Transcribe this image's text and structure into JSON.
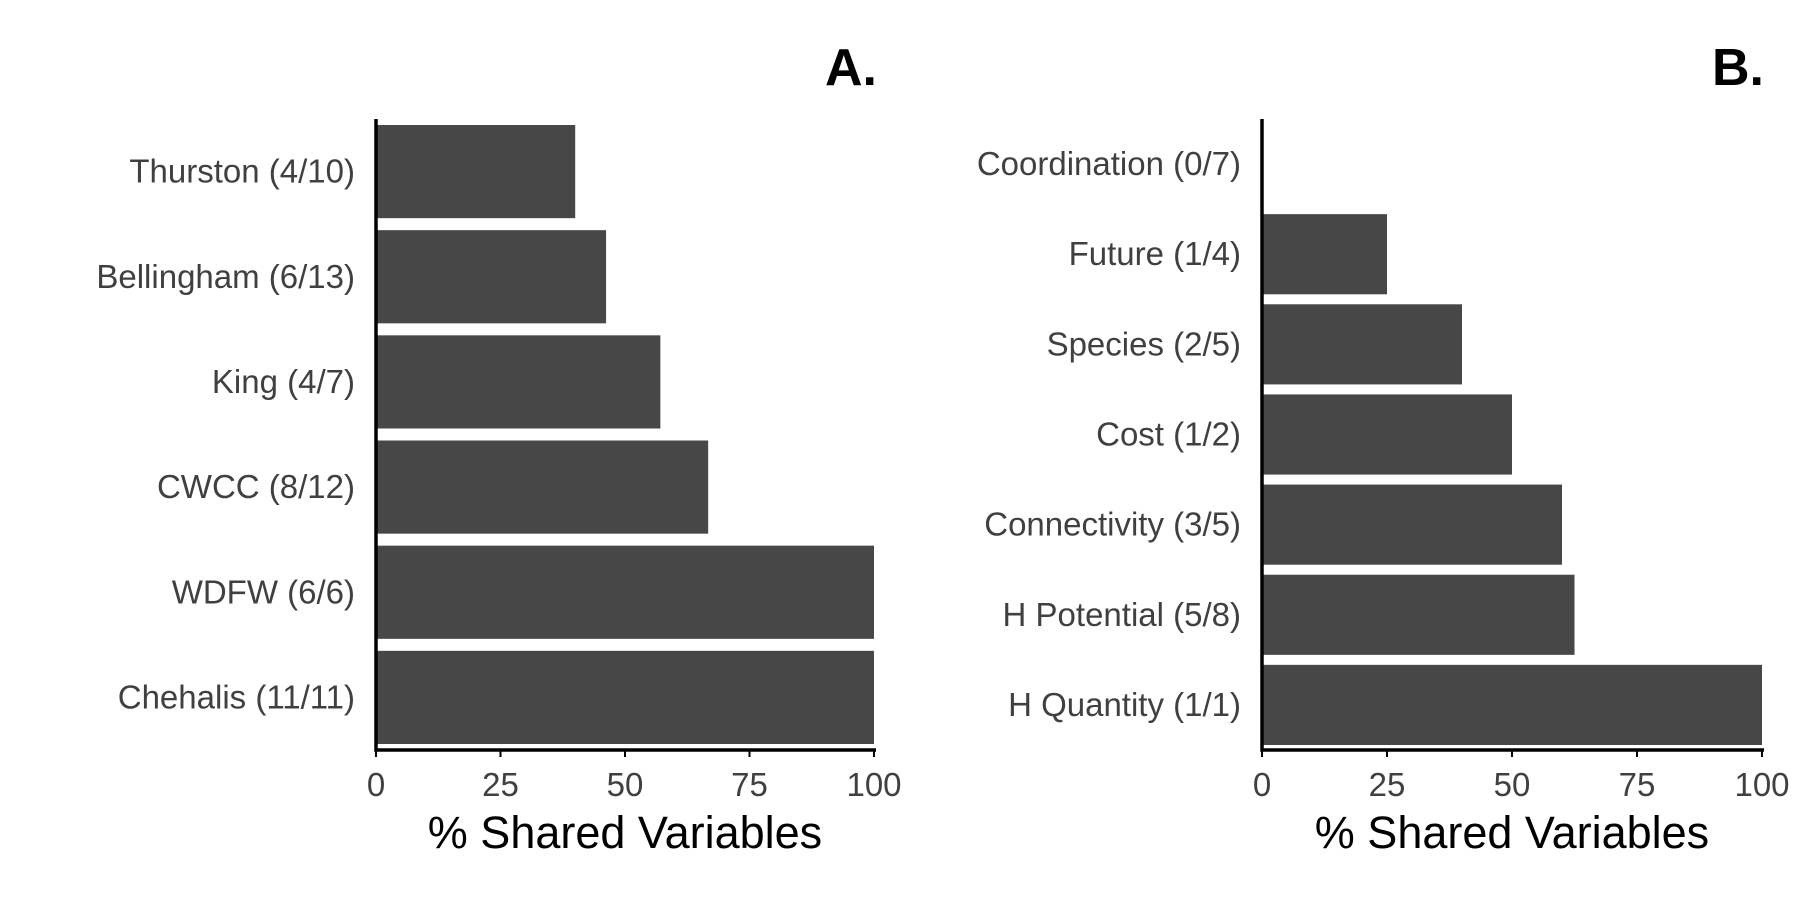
{
  "chart_data": [
    {
      "type": "bar",
      "orientation": "horizontal",
      "panel_label": "A.",
      "categories": [
        "Thurston (4/10)",
        "Bellingham (6/13)",
        "King (4/7)",
        "CWCC (8/12)",
        "WDFW (6/6)",
        "Chehalis (11/11)"
      ],
      "values": [
        40,
        46.2,
        57.1,
        66.7,
        100,
        100
      ],
      "xlabel": "% Shared Variables",
      "xlim": [
        0,
        100
      ],
      "xticks": [
        "0",
        "25",
        "50",
        "75",
        "100"
      ],
      "grid": false,
      "bar_color": "#474747"
    },
    {
      "type": "bar",
      "orientation": "horizontal",
      "panel_label": "B.",
      "categories": [
        "Coordination (0/7)",
        "Future (1/4)",
        "Species (2/5)",
        "Cost (1/2)",
        "Connectivity (3/5)",
        "H Potential (5/8)",
        "H Quantity (1/1)"
      ],
      "values": [
        0,
        25,
        40,
        50,
        60,
        62.5,
        100
      ],
      "xlabel": "% Shared Variables",
      "xlim": [
        0,
        100
      ],
      "xticks": [
        "0",
        "25",
        "50",
        "75",
        "100"
      ],
      "grid": false,
      "bar_color": "#474747"
    }
  ]
}
